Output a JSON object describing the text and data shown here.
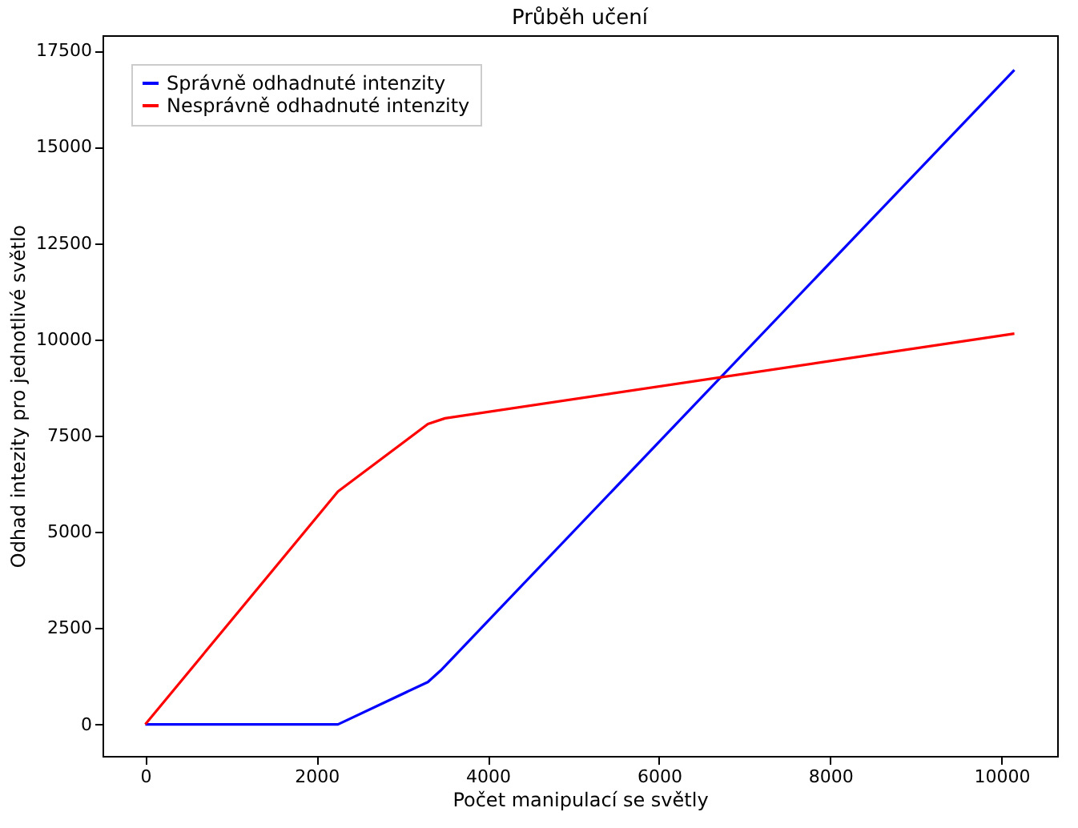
{
  "chart_data": {
    "type": "line",
    "title": "Průběh učení",
    "xlabel": "Počet manipulací se světly",
    "ylabel": "Odhad intezity pro jednotlivé světlo",
    "xlim": [
      -500,
      10650
    ],
    "ylim": [
      -820,
      17900
    ],
    "xticks": [
      0,
      2000,
      4000,
      6000,
      8000,
      10000
    ],
    "yticks": [
      0,
      2500,
      5000,
      7500,
      10000,
      12500,
      15000,
      17500
    ],
    "grid": false,
    "legend": "top left",
    "marker": "none",
    "line_style": "solid",
    "series": [
      {
        "name": "Správně odhadnuté intenzity",
        "color": "#0000ff",
        "x": [
          0,
          2250,
          3300,
          3450,
          10150
        ],
        "values": [
          0,
          0,
          1100,
          1400,
          17000
        ]
      },
      {
        "name": "Nesprávně odhadnuté intenzity",
        "color": "#ff0000",
        "x": [
          0,
          2250,
          3300,
          3500,
          10150
        ],
        "values": [
          0,
          6050,
          7800,
          7950,
          10150
        ]
      }
    ]
  }
}
